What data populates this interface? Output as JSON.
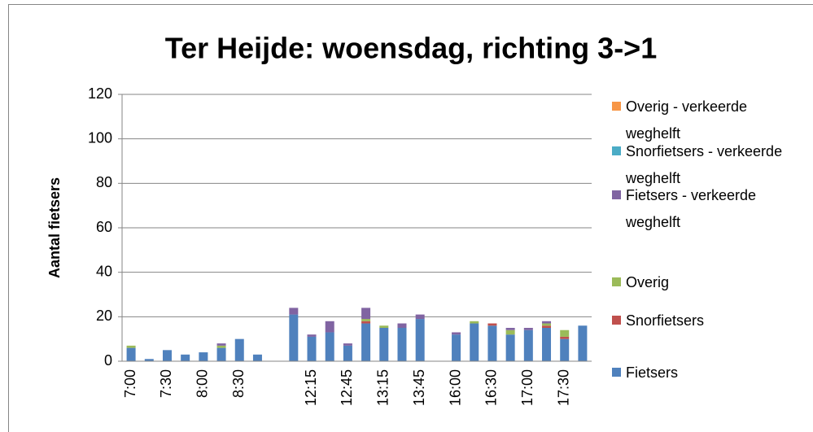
{
  "chart_data": {
    "type": "stacked_bar",
    "title": "Ter Heijde: woensdag, richting 3->1",
    "y_label": "Aantal fietsers",
    "categories": [
      "7:00",
      null,
      "7:30",
      null,
      "8:00",
      null,
      "8:30",
      null,
      null,
      null,
      "12:15",
      null,
      "12:45",
      null,
      "13:15",
      null,
      "13:45",
      null,
      "16:00",
      null,
      "16:30",
      null,
      "17:00",
      null,
      "17:30",
      null
    ],
    "series": [
      {
        "name": "Fietsers",
        "color": "#4f81bd",
        "values": [
          6,
          1,
          5,
          3,
          4,
          6,
          10,
          3,
          0,
          21,
          11,
          13,
          7,
          17,
          15,
          15,
          19,
          0,
          12,
          17,
          16,
          12,
          14,
          15,
          10,
          16
        ]
      },
      {
        "name": "Snorfietsers",
        "color": "#c0504d",
        "values": [
          0,
          0,
          0,
          0,
          0,
          0,
          0,
          0,
          0,
          0,
          0,
          0,
          0,
          1,
          0,
          0,
          0,
          0,
          0,
          0,
          1,
          0,
          0,
          1,
          1,
          0
        ]
      },
      {
        "name": "Overig",
        "color": "#9bbb59",
        "values": [
          1,
          0,
          0,
          0,
          0,
          1,
          0,
          0,
          0,
          0,
          0,
          0,
          0,
          1,
          1,
          0,
          0,
          0,
          0,
          1,
          0,
          2,
          0,
          1,
          3,
          0
        ]
      },
      {
        "name": "Fietsers - verkeerde weghelft",
        "color": "#8064a2",
        "values": [
          0,
          0,
          0,
          0,
          0,
          1,
          0,
          0,
          0,
          3,
          1,
          5,
          1,
          5,
          0,
          2,
          2,
          0,
          1,
          0,
          0,
          1,
          1,
          1,
          0,
          0
        ]
      },
      {
        "name": "Snorfietsers - verkeerde weghelft",
        "color": "#4bacc6",
        "values": [
          0,
          0,
          0,
          0,
          0,
          0,
          0,
          0,
          0,
          0,
          0,
          0,
          0,
          0,
          0,
          0,
          0,
          0,
          0,
          0,
          0,
          0,
          0,
          0,
          0,
          0
        ]
      },
      {
        "name": "Overig - verkeerde weghelft",
        "color": "#f79646",
        "values": [
          0,
          0,
          0,
          0,
          0,
          0,
          0,
          0,
          0,
          0,
          0,
          0,
          0,
          0,
          0,
          0,
          0,
          0,
          0,
          0,
          0,
          0,
          0,
          0,
          0,
          0
        ]
      }
    ],
    "ylim": [
      0,
      120
    ],
    "yticks": [
      0,
      20,
      40,
      60,
      80,
      100,
      120
    ],
    "grid": true
  }
}
